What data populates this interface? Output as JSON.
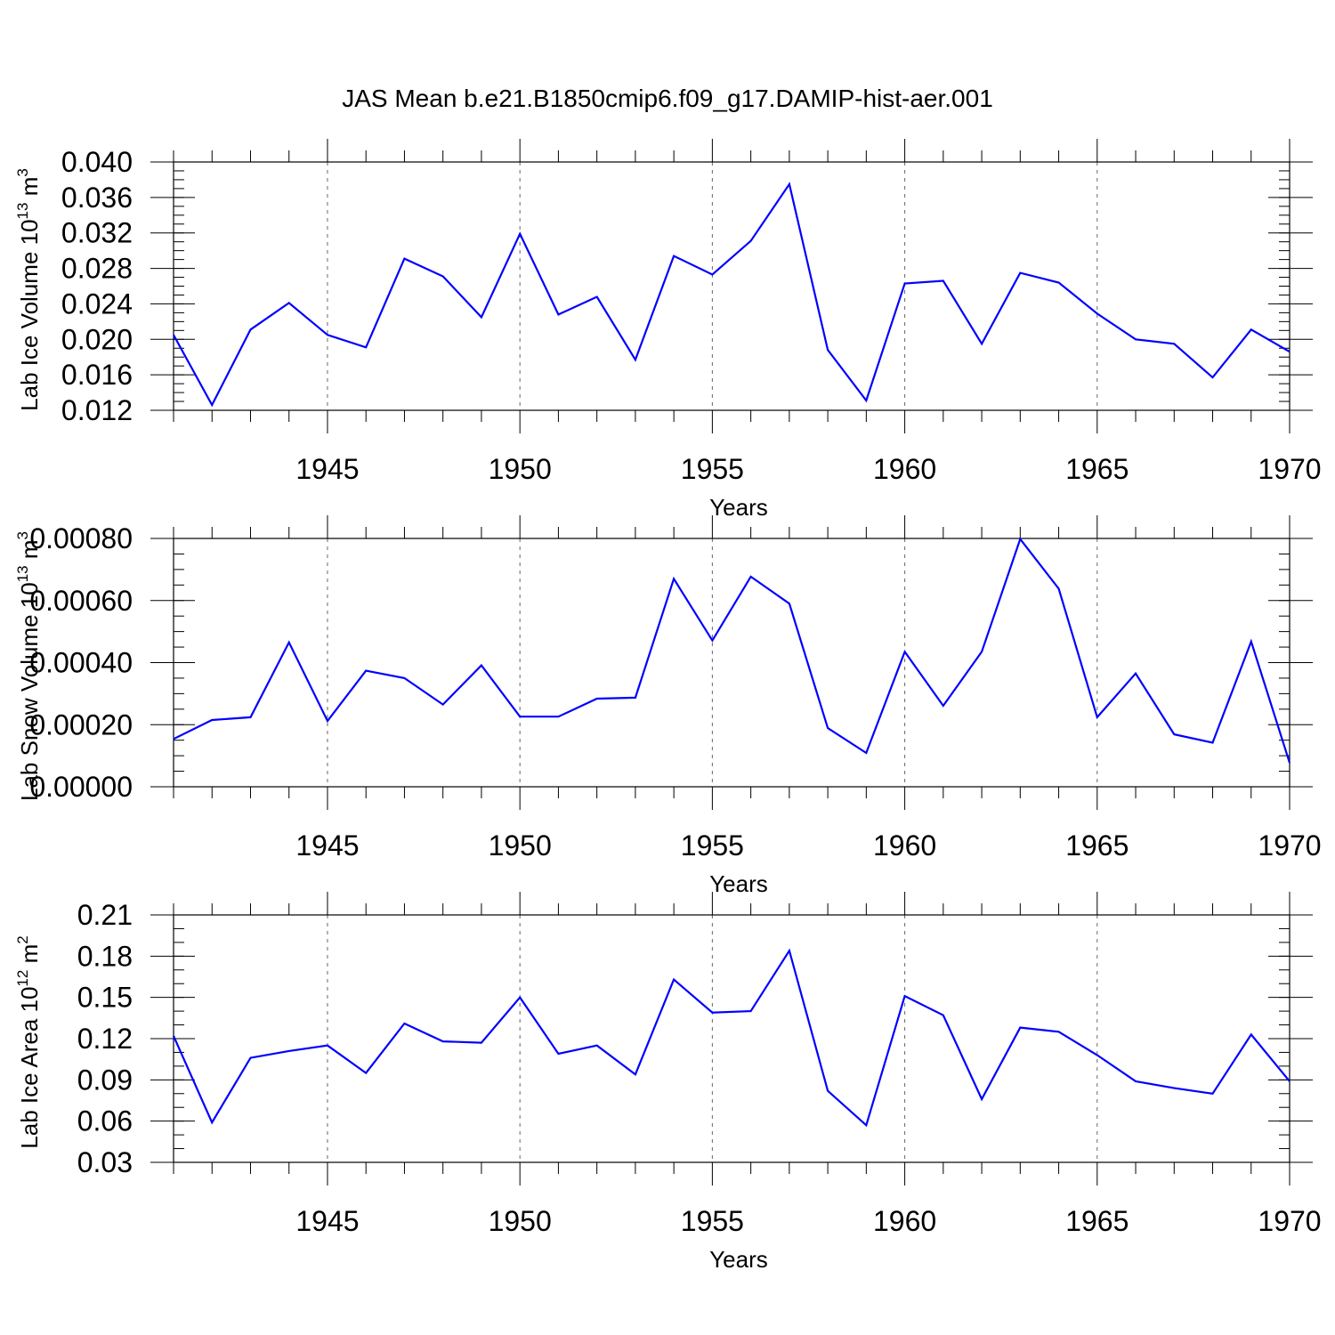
{
  "chart_data": {
    "title": "JAS Mean b.e21.B1850cmip6.f09_g17.DAMIP-hist-aer.001",
    "colors": {
      "line": "#0000ff",
      "axis": "#000000",
      "grid": "#666666"
    },
    "panels": [
      {
        "type": "line",
        "ylabel": "Lab Ice Volume 10",
        "ylabel_sup": "13",
        "ylabel_unit": "m",
        "ylabel_unit_sup": "3",
        "xlabel": "Years",
        "xlim": [
          1941,
          1970
        ],
        "ylim": [
          0.012,
          0.04
        ],
        "yticks": [
          0.012,
          0.016,
          0.02,
          0.024,
          0.028,
          0.032,
          0.036,
          0.04
        ],
        "ytick_labels": [
          "0.012",
          "0.016",
          "0.020",
          "0.024",
          "0.028",
          "0.032",
          "0.036",
          "0.040"
        ],
        "y_minor_step": 0.001,
        "xticks": [
          1945,
          1950,
          1955,
          1960,
          1965,
          1970
        ],
        "xtick_labels": [
          "1945",
          "1950",
          "1955",
          "1960",
          "1965",
          "1970"
        ],
        "x": [
          1941,
          1942,
          1943,
          1944,
          1945,
          1946,
          1947,
          1948,
          1949,
          1950,
          1951,
          1952,
          1953,
          1954,
          1955,
          1956,
          1957,
          1958,
          1959,
          1960,
          1961,
          1962,
          1963,
          1964,
          1965,
          1966,
          1967,
          1968,
          1969,
          1970
        ],
        "y": [
          0.0205,
          0.0126,
          0.0211,
          0.0241,
          0.0205,
          0.0191,
          0.0291,
          0.0271,
          0.0225,
          0.0319,
          0.0228,
          0.0248,
          0.0177,
          0.0294,
          0.0273,
          0.0311,
          0.0375,
          0.0188,
          0.0131,
          0.0263,
          0.0266,
          0.0195,
          0.0275,
          0.0264,
          0.0229,
          0.02,
          0.0195,
          0.0157,
          0.0211,
          0.0186
        ]
      },
      {
        "type": "line",
        "ylabel": "Lab Snow Volume 10",
        "ylabel_sup": "13",
        "ylabel_unit": "m",
        "ylabel_unit_sup": "3",
        "xlabel": "Years",
        "xlim": [
          1941,
          1970
        ],
        "ylim": [
          0.0,
          0.0008
        ],
        "yticks": [
          0.0,
          0.0002,
          0.0004,
          0.0006,
          0.0008
        ],
        "ytick_labels": [
          "0.00000",
          "0.00020",
          "0.00040",
          "0.00060",
          "0.00080"
        ],
        "y_minor_step": 5e-05,
        "xticks": [
          1945,
          1950,
          1955,
          1960,
          1965,
          1970
        ],
        "xtick_labels": [
          "1945",
          "1950",
          "1955",
          "1960",
          "1965",
          "1970"
        ],
        "x": [
          1941,
          1942,
          1943,
          1944,
          1945,
          1946,
          1947,
          1948,
          1949,
          1950,
          1951,
          1952,
          1953,
          1954,
          1955,
          1956,
          1957,
          1958,
          1959,
          1960,
          1961,
          1962,
          1963,
          1964,
          1965,
          1966,
          1967,
          1968,
          1969,
          1970
        ],
        "y": [
          0.000154,
          0.000215,
          0.000224,
          0.000465,
          0.000212,
          0.000374,
          0.00035,
          0.000265,
          0.000391,
          0.000226,
          0.000226,
          0.000284,
          0.000287,
          0.00067,
          0.000471,
          0.000677,
          0.00059,
          0.000189,
          0.000109,
          0.000435,
          0.000261,
          0.000435,
          0.000798,
          0.000638,
          0.000224,
          0.000365,
          0.000169,
          0.000142,
          0.000468,
          7.7e-05
        ]
      },
      {
        "type": "line",
        "ylabel": "Lab Ice Area 10",
        "ylabel_sup": "12",
        "ylabel_unit": "m",
        "ylabel_unit_sup": "2",
        "xlabel": "Years",
        "xlim": [
          1941,
          1970
        ],
        "ylim": [
          0.03,
          0.21
        ],
        "yticks": [
          0.03,
          0.06,
          0.09,
          0.12,
          0.15,
          0.18,
          0.21
        ],
        "ytick_labels": [
          "0.03",
          "0.06",
          "0.09",
          "0.12",
          "0.15",
          "0.18",
          "0.21"
        ],
        "y_minor_step": 0.01,
        "xticks": [
          1945,
          1950,
          1955,
          1960,
          1965,
          1970
        ],
        "xtick_labels": [
          "1945",
          "1950",
          "1955",
          "1960",
          "1965",
          "1970"
        ],
        "x": [
          1941,
          1942,
          1943,
          1944,
          1945,
          1946,
          1947,
          1948,
          1949,
          1950,
          1951,
          1952,
          1953,
          1954,
          1955,
          1956,
          1957,
          1958,
          1959,
          1960,
          1961,
          1962,
          1963,
          1964,
          1965,
          1966,
          1967,
          1968,
          1969,
          1970
        ],
        "y": [
          0.122,
          0.059,
          0.106,
          0.111,
          0.115,
          0.095,
          0.131,
          0.118,
          0.117,
          0.15,
          0.109,
          0.115,
          0.094,
          0.163,
          0.139,
          0.14,
          0.184,
          0.082,
          0.057,
          0.151,
          0.137,
          0.076,
          0.128,
          0.125,
          0.108,
          0.089,
          0.084,
          0.08,
          0.123,
          0.089
        ]
      }
    ]
  }
}
